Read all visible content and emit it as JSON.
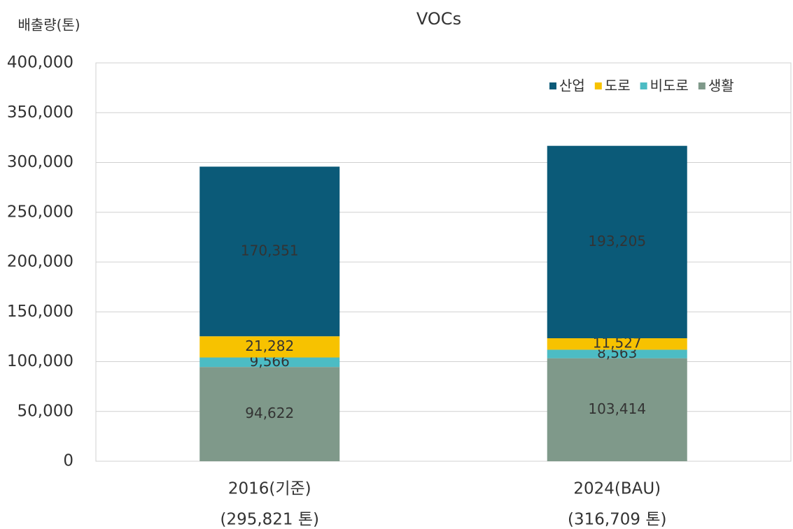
{
  "chart_data": {
    "type": "stacked_bar",
    "title": "VOCs",
    "y_label": "배출량(톤)",
    "categories": [
      [
        "2016(기준)",
        "(295,821 톤)"
      ],
      [
        "2024(BAU)",
        "(316,709 톤)"
      ]
    ],
    "series": [
      {
        "name": "산업",
        "color": "#0b5a78",
        "label_color": "#ffffff",
        "values": [
          170351,
          193205
        ],
        "value_labels": [
          "170,351",
          "193,205"
        ]
      },
      {
        "name": "도로",
        "color": "#f7c200",
        "label_color": "#111111",
        "values": [
          21282,
          11527
        ],
        "value_labels": [
          "21,282",
          "11,527"
        ]
      },
      {
        "name": "비도로",
        "color": "#4cbcc4",
        "label_color": "#555555",
        "values": [
          9566,
          8563
        ],
        "value_labels": [
          "9,566",
          "8,563"
        ]
      },
      {
        "name": "생활",
        "color": "#7f998a",
        "label_color": "#3a3a3a",
        "values": [
          94622,
          103414
        ],
        "value_labels": [
          "94,622",
          "103,414"
        ]
      }
    ],
    "ylim": [
      0,
      400000
    ],
    "yticks": [
      0,
      {
        "value": 50000,
        "label": "50,000"
      },
      {
        "value": 100000,
        "label": "100,000"
      },
      {
        "value": 150000,
        "label": "150,000"
      },
      {
        "value": 200000,
        "label": "200,000"
      },
      {
        "value": 250000,
        "label": "250,000"
      },
      {
        "value": 300000,
        "label": "300,000"
      },
      {
        "value": 350000,
        "label": "350,000"
      },
      {
        "value": 400000,
        "label": "400,000"
      }
    ],
    "grid": true,
    "legend": "top-right"
  }
}
